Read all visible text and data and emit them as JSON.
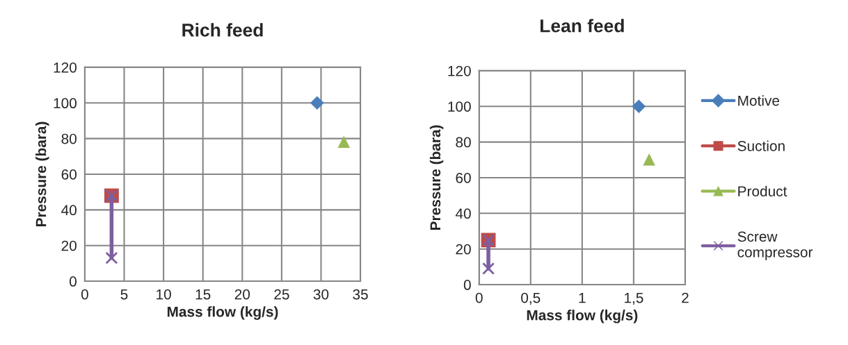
{
  "chart_data": [
    {
      "type": "line",
      "title": "Rich feed",
      "xlabel": "Mass flow (kg/s)",
      "ylabel": "Pressure (bara)",
      "xlim": [
        0,
        35
      ],
      "xticks": [
        0,
        5,
        10,
        15,
        20,
        25,
        30,
        35
      ],
      "ylim": [
        0,
        120
      ],
      "yticks": [
        0,
        20,
        40,
        60,
        80,
        100,
        120
      ],
      "grid": true,
      "legend": false,
      "series": [
        {
          "color": "#4a7ebb",
          "marker": "diamond",
          "x": [
            29.5
          ],
          "values": [
            100
          ]
        },
        {
          "color": "#be4b48",
          "marker": "square",
          "x": [
            3.4
          ],
          "values": [
            48
          ]
        },
        {
          "color": "#98b954",
          "marker": "triangle",
          "x": [
            32.9
          ],
          "values": [
            78
          ]
        },
        {
          "color": "#7d5fa0",
          "marker": "cross",
          "x": [
            3.4,
            3.4
          ],
          "values": [
            13,
            48
          ]
        }
      ]
    },
    {
      "type": "line",
      "title": "Lean feed",
      "xlabel": "Mass flow (kg/s)",
      "ylabel": "Pressure (bara)",
      "xlim": [
        0,
        2
      ],
      "xticks": [
        0,
        {
          "value": 0.5,
          "label": "0,5"
        },
        1,
        {
          "value": 1.5,
          "label": "1,5"
        },
        2
      ],
      "ylim": [
        0,
        120
      ],
      "yticks": [
        0,
        20,
        40,
        60,
        80,
        100,
        120
      ],
      "grid": true,
      "legend": "right",
      "series": [
        {
          "name": "Motive",
          "color": "#4a7ebb",
          "marker": "diamond",
          "x": [
            1.55
          ],
          "values": [
            100
          ]
        },
        {
          "name": "Suction",
          "color": "#be4b48",
          "marker": "square",
          "x": [
            0.09
          ],
          "values": [
            25
          ]
        },
        {
          "name": "Product",
          "color": "#98b954",
          "marker": "triangle",
          "x": [
            1.65
          ],
          "values": [
            70
          ]
        },
        {
          "name": "Screw\ncompressor",
          "color": "#7d5fa0",
          "marker": "cross",
          "x": [
            0.09,
            0.09
          ],
          "values": [
            9,
            25
          ]
        }
      ]
    }
  ]
}
